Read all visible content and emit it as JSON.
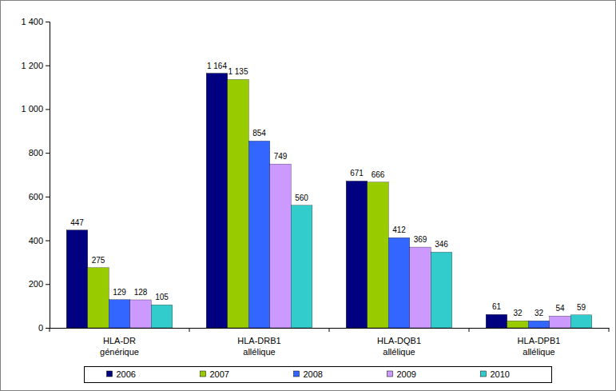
{
  "chart_data": {
    "type": "bar",
    "categories": [
      "HLA-DR générique",
      "HLA-DRB1 allélique",
      "HLA-DQB1 allélique",
      "HLA-DPB1 allélique"
    ],
    "series": [
      {
        "name": "2006",
        "color": "#000080",
        "values": [
          447,
          1164,
          671,
          61
        ],
        "value_labels": [
          "447",
          "1 164",
          "671",
          "61"
        ]
      },
      {
        "name": "2007",
        "color": "#99cc00",
        "values": [
          275,
          1135,
          666,
          32
        ],
        "value_labels": [
          "275",
          "1 135",
          "666",
          "32"
        ]
      },
      {
        "name": "2008",
        "color": "#3366ff",
        "values": [
          129,
          854,
          412,
          32
        ],
        "value_labels": [
          "129",
          "854",
          "412",
          "32"
        ]
      },
      {
        "name": "2009",
        "color": "#cc99ff",
        "values": [
          128,
          749,
          369,
          54
        ],
        "value_labels": [
          "128",
          "749",
          "369",
          "54"
        ]
      },
      {
        "name": "2010",
        "color": "#33cccc",
        "values": [
          105,
          560,
          346,
          59
        ],
        "value_labels": [
          "105",
          "560",
          "346",
          "59"
        ]
      }
    ],
    "ylim": [
      0,
      1400
    ],
    "yticks": [
      0,
      200,
      400,
      600,
      800,
      {
        "value": 1000,
        "label": "1 000"
      },
      {
        "value": 1200,
        "label": "1 200"
      },
      {
        "value": 1400,
        "label": "1 400"
      }
    ],
    "grid": false,
    "legend": "bottom",
    "data_labels": true
  }
}
